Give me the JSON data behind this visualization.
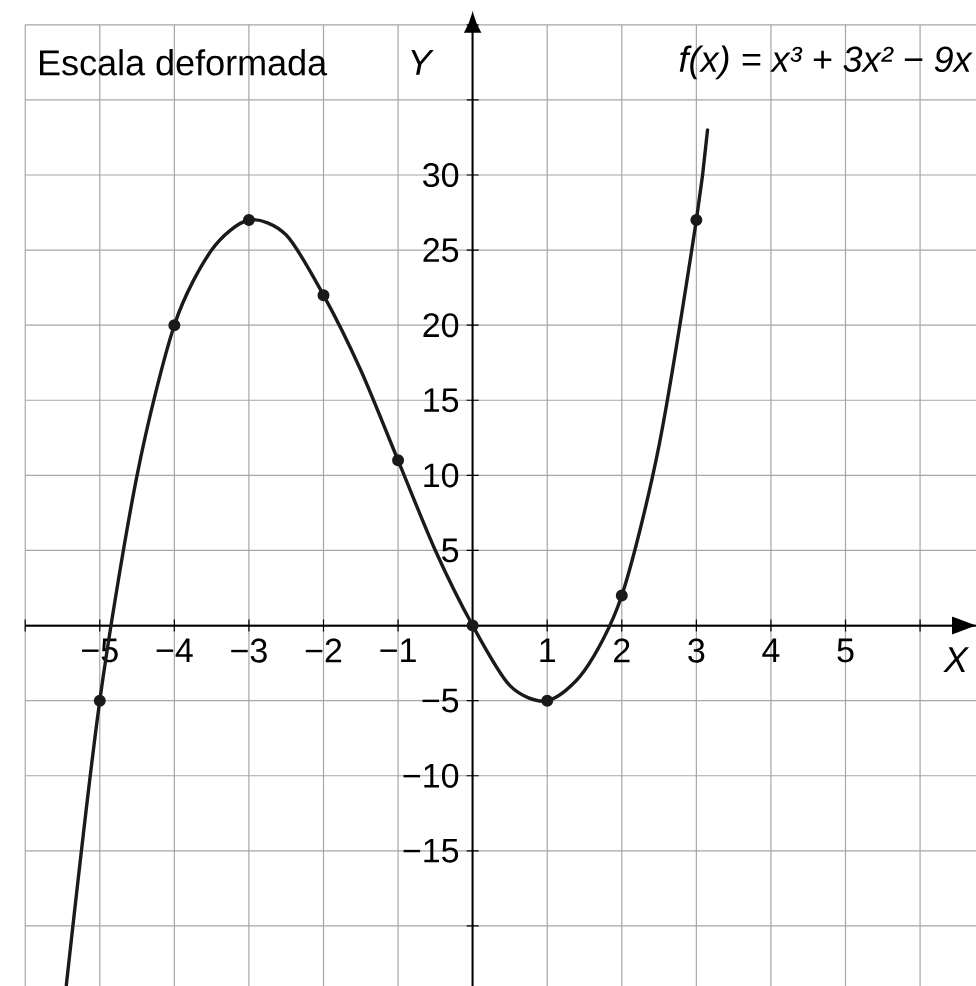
{
  "chart_data": {
    "type": "line",
    "annotations": [
      "Escala deformada",
      "f(x) = x³ + 3x² − 9x"
    ],
    "xlabel": "X",
    "ylabel": "Y",
    "xlim": [
      -6,
      6.75
    ],
    "ylim": [
      -24,
      40
    ],
    "xticks": [
      {
        "value": -6,
        "label": null
      },
      {
        "value": -5,
        "label": "−5"
      },
      {
        "value": -4,
        "label": "−4"
      },
      {
        "value": -3,
        "label": "−3"
      },
      {
        "value": -2,
        "label": "−2"
      },
      {
        "value": -1,
        "label": "−1"
      },
      {
        "value": 0,
        "label": null
      },
      1,
      2,
      3,
      4,
      5,
      {
        "value": 6,
        "label": null
      }
    ],
    "yticks": [
      {
        "value": -20,
        "label": null
      },
      {
        "value": -15,
        "label": "−15"
      },
      {
        "value": -10,
        "label": "−10"
      },
      {
        "value": -5,
        "label": "−5"
      },
      {
        "value": 0,
        "label": null
      },
      5,
      10,
      15,
      20,
      25,
      30,
      {
        "value": 35,
        "label": null
      },
      {
        "value": 40,
        "label": null
      }
    ],
    "grid": true,
    "series": [
      {
        "color": "#1a1a1a",
        "x": [
          -5.45,
          -5,
          -4.5,
          -4,
          -3.5,
          -3,
          -2.5,
          -2,
          -1.5,
          -1,
          -0.5,
          0,
          0.5,
          1,
          1.5,
          2,
          2.5,
          3,
          3.15
        ],
        "values": [
          -24,
          -5,
          10,
          20,
          25,
          27,
          26,
          22,
          17,
          11,
          5,
          0,
          -4,
          -5,
          -3,
          2,
          12,
          27,
          33
        ]
      },
      {
        "type": "scatter",
        "color": "#1a1a1a",
        "marker": "circle",
        "x": [
          -5,
          -4,
          -3,
          -2,
          -1,
          0,
          1,
          2,
          3
        ],
        "values": [
          -5,
          20,
          27,
          22,
          11,
          0,
          -5,
          2,
          27
        ]
      }
    ]
  }
}
